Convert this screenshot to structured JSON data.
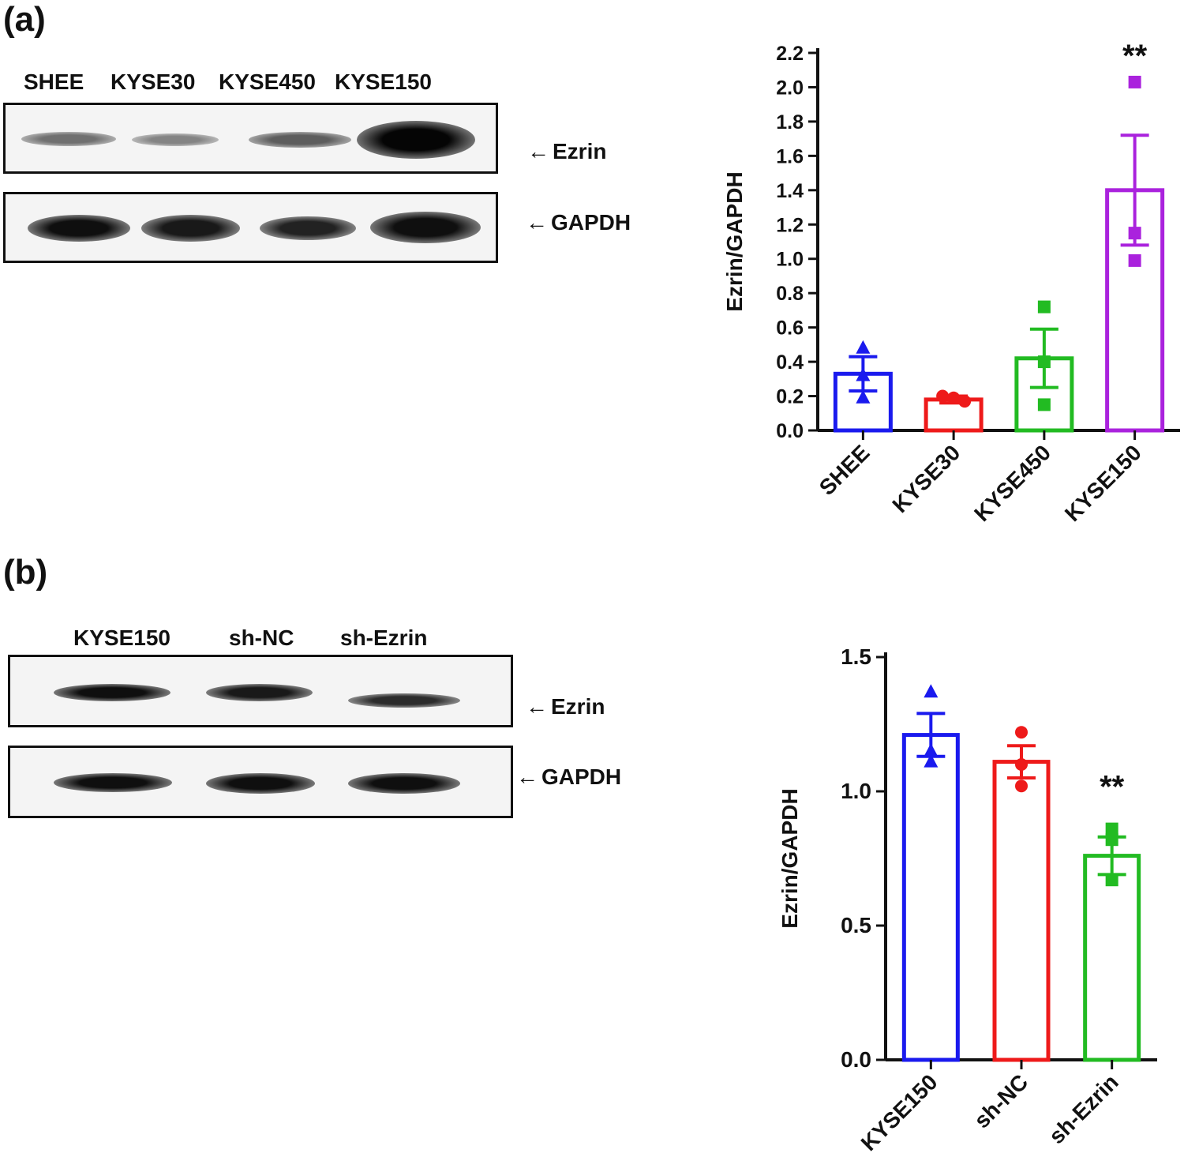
{
  "panel_a": {
    "label": "(a)",
    "blot": {
      "lanes": [
        "SHEE",
        "KYSE30",
        "KYSE450",
        "KYSE150"
      ],
      "rows": [
        {
          "name": "Ezrin",
          "arrow": "←",
          "intensities": [
            0.45,
            0.35,
            0.55,
            1.0
          ]
        },
        {
          "name": "GAPDH",
          "arrow": "←",
          "intensities": [
            0.95,
            0.9,
            0.85,
            0.95
          ]
        }
      ]
    }
  },
  "panel_b": {
    "label": "(b)",
    "blot": {
      "lanes": [
        "KYSE150",
        "sh-NC",
        "sh-Ezrin"
      ],
      "rows": [
        {
          "name": "Ezrin",
          "arrow": "←",
          "intensities": [
            0.95,
            0.9,
            0.8
          ]
        },
        {
          "name": "GAPDH",
          "arrow": "←",
          "intensities": [
            0.95,
            0.95,
            0.95
          ]
        }
      ]
    }
  },
  "chart_data": [
    {
      "type": "bar",
      "categories": [
        "SHEE",
        "KYSE30",
        "KYSE450",
        "KYSE150"
      ],
      "values": [
        0.33,
        0.18,
        0.42,
        1.4
      ],
      "errors": [
        0.1,
        0.02,
        0.17,
        0.32
      ],
      "points": [
        [
          0.48,
          0.32,
          0.19
        ],
        [
          0.2,
          0.19,
          0.17
        ],
        [
          0.72,
          0.4,
          0.15
        ],
        [
          2.03,
          1.15,
          0.99
        ]
      ],
      "markers": [
        "triangle",
        "circle",
        "square",
        "square"
      ],
      "colors": [
        "#1a1aee",
        "#ee1a1a",
        "#22bb22",
        "#aa22dd"
      ],
      "ylabel": "Ezrin/GAPDH",
      "ylim": [
        0,
        2.2
      ],
      "yticks": [
        "0.0",
        "0.2",
        "0.4",
        "0.6",
        "0.8",
        "1.0",
        "1.2",
        "1.4",
        "1.6",
        "1.8",
        "2.0",
        "2.2"
      ],
      "annotations": [
        {
          "category": "KYSE150",
          "text": "**"
        }
      ]
    },
    {
      "type": "bar",
      "categories": [
        "KYSE150",
        "sh-NC",
        "sh-Ezrin"
      ],
      "values": [
        1.21,
        1.11,
        0.76
      ],
      "errors": [
        0.08,
        0.06,
        0.07
      ],
      "points": [
        [
          1.37,
          1.15,
          1.11
        ],
        [
          1.22,
          1.1,
          1.02
        ],
        [
          0.86,
          0.82,
          0.67
        ]
      ],
      "markers": [
        "triangle",
        "circle",
        "square"
      ],
      "colors": [
        "#1a1aee",
        "#ee1a1a",
        "#22bb22"
      ],
      "ylabel": "Ezrin/GAPDH",
      "ylim": [
        0,
        1.5
      ],
      "yticks": [
        "0.0",
        "0.5",
        "1.0",
        "1.5"
      ],
      "annotations": [
        {
          "category": "sh-Ezrin",
          "text": "**"
        }
      ]
    }
  ]
}
